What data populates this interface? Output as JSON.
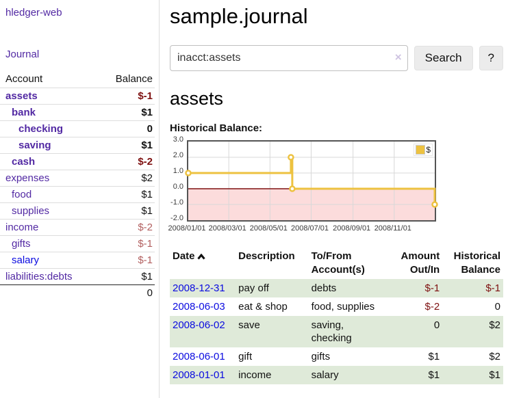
{
  "colors": {
    "purple": "#5229a3",
    "blue": "#0a0ae0",
    "darkred": "#7e1010",
    "rose": "#b25f5f",
    "rowgreen": "#dfead9",
    "gold": "#edc240",
    "pink": "#fcdcdc",
    "gridline": "#d8d8d8",
    "plotborder": "#545454"
  },
  "app": {
    "brand": "hledger-web",
    "nav_journal": "Journal"
  },
  "sidebar": {
    "header": {
      "account": "Account",
      "balance": "Balance"
    },
    "accounts": [
      {
        "name": "assets",
        "balance": "$-1"
      },
      {
        "name": "bank",
        "balance": "$1"
      },
      {
        "name": "checking",
        "balance": "0"
      },
      {
        "name": "saving",
        "balance": "$1"
      },
      {
        "name": "cash",
        "balance": "$-2"
      },
      {
        "name": "expenses",
        "balance": "$2"
      },
      {
        "name": "food",
        "balance": "$1"
      },
      {
        "name": "supplies",
        "balance": "$1"
      },
      {
        "name": "income",
        "balance": "$-2"
      },
      {
        "name": "gifts",
        "balance": "$-1"
      },
      {
        "name": "salary",
        "balance": "$-1"
      },
      {
        "name": "liabilities:debts",
        "balance": "$1"
      }
    ],
    "total": "0"
  },
  "main": {
    "title": "sample.journal",
    "search": {
      "value": "inacct:assets",
      "clear_icon": "×",
      "button": "Search",
      "help": "?"
    },
    "account_heading": "assets",
    "chart_label": "Historical Balance:"
  },
  "chart_data": {
    "type": "line",
    "title": "Historical Balance",
    "series": [
      {
        "name": "$",
        "color_key": "gold",
        "points": [
          [
            "2008-01-01",
            1
          ],
          [
            "2008-06-01",
            2
          ],
          [
            "2008-06-03",
            0
          ],
          [
            "2008-12-31",
            -1
          ]
        ]
      }
    ],
    "step": true,
    "x_range": [
      "2008-01-01",
      "2008-12-31"
    ],
    "x_tick_labels": [
      "2008/01/01",
      "2008/03/01",
      "2008/05/01",
      "2008/07/01",
      "2008/09/01",
      "2008/11/01"
    ],
    "y_ticks": [
      3.0,
      2.0,
      1.0,
      0.0,
      -1.0,
      -2.0
    ],
    "ylim": [
      -2,
      3
    ],
    "legend_position": "top-right",
    "negative_shading": true
  },
  "register": {
    "headers": {
      "date": "Date",
      "description": "Description",
      "account_l1": "To/From",
      "account_l2": "Account(s)",
      "amount_l1": "Amount",
      "amount_l2": "Out/In",
      "hist_l1": "Historical",
      "hist_l2": "Balance"
    },
    "rows": [
      {
        "date": "2008-12-31",
        "description": "pay off",
        "accounts": "debts",
        "amount": "$-1",
        "balance": "$-1"
      },
      {
        "date": "2008-06-03",
        "description": "eat & shop",
        "accounts": "food, supplies",
        "amount": "$-2",
        "balance": "0"
      },
      {
        "date": "2008-06-02",
        "description": "save",
        "accounts": "saving, checking",
        "amount": "0",
        "balance": "$2"
      },
      {
        "date": "2008-06-01",
        "description": "gift",
        "accounts": "gifts",
        "amount": "$1",
        "balance": "$2"
      },
      {
        "date": "2008-01-01",
        "description": "income",
        "accounts": "salary",
        "amount": "$1",
        "balance": "$1"
      }
    ]
  }
}
